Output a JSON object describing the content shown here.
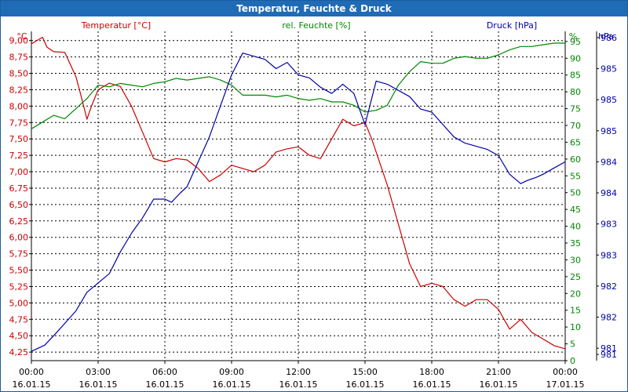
{
  "chart_data": {
    "type": "line",
    "title": "Temperatur, Feuchte & Druck",
    "colors": {
      "temperature": "#cc0000",
      "humidity": "#008800",
      "pressure": "#0000aa",
      "axis": "#000000",
      "grid": "#000000",
      "title_bg": "#1f6bb5"
    },
    "series_labels": {
      "temperature": "Temperatur [°C]",
      "humidity": "rel. Feuchte [%]",
      "pressure": "Druck [hPa]"
    },
    "left_axis": {
      "unit": "°C",
      "ylim": [
        4.12,
        9.14
      ],
      "ticks": [
        "9,00",
        "8,75",
        "8,50",
        "8,25",
        "8,00",
        "7,75",
        "7,50",
        "7,25",
        "7,00",
        "6,75",
        "6,50",
        "6,25",
        "6,00",
        "5,75",
        "5,50",
        "5,25",
        "5,00",
        "4,75",
        "4,50",
        "4,25"
      ],
      "tick_values": [
        9.0,
        8.75,
        8.5,
        8.25,
        8.0,
        7.75,
        7.5,
        7.25,
        7.0,
        6.75,
        6.5,
        6.25,
        6.0,
        5.75,
        5.5,
        5.25,
        5.0,
        4.75,
        4.5,
        4.25
      ]
    },
    "middle_axis": {
      "unit": "%",
      "ylim": [
        0,
        98
      ],
      "ticks": [
        "95",
        "90",
        "85",
        "80",
        "75",
        "70",
        "65",
        "60",
        "55",
        "50",
        "45",
        "40",
        "35",
        "30",
        "25",
        "20",
        "15",
        "10",
        "5",
        "0"
      ],
      "tick_values": [
        95,
        90,
        85,
        80,
        75,
        70,
        65,
        60,
        55,
        50,
        45,
        40,
        35,
        30,
        25,
        20,
        15,
        10,
        5,
        0
      ]
    },
    "right_axis": {
      "unit": "hPa",
      "ylim": [
        980.8,
        986.1
      ],
      "ticks": [
        "986",
        "985",
        "985",
        "985",
        "984",
        "984",
        "983",
        "983",
        "982",
        "982",
        "981",
        "981"
      ],
      "tick_values": [
        986.0,
        985.5,
        985.0,
        984.5,
        984.0,
        983.5,
        983.0,
        982.5,
        982.0,
        981.5,
        981.0,
        980.9
      ]
    },
    "x_axis": {
      "xlim": [
        0,
        24
      ],
      "tick_positions": [
        0,
        3,
        6,
        9,
        12,
        15,
        18,
        21,
        24
      ],
      "time_labels": [
        "00:00",
        "03:00",
        "06:00",
        "09:00",
        "12:00",
        "15:00",
        "18:00",
        "21:00",
        "00:00"
      ],
      "date_labels": [
        "16.01.15",
        "16.01.15",
        "16.01.15",
        "16.01.15",
        "16.01.15",
        "16.01.15",
        "16.01.15",
        "16.01.15",
        "17.01.15"
      ]
    },
    "series": [
      {
        "key": "temperature",
        "name": "Temperatur [°C]",
        "x": [
          0,
          0.5,
          0.7,
          1.0,
          1.5,
          1.8,
          2.0,
          2.2,
          2.5,
          2.7,
          3.0,
          3.5,
          4.0,
          4.5,
          5.0,
          5.5,
          6.0,
          6.5,
          7.0,
          7.5,
          8.0,
          8.5,
          9.0,
          9.5,
          10.0,
          10.5,
          11.0,
          11.5,
          12.0,
          12.5,
          13.0,
          13.5,
          14.0,
          14.5,
          15.0,
          15.3,
          15.6,
          16.0,
          16.5,
          17.0,
          17.5,
          18.0,
          18.5,
          19.0,
          19.5,
          20.0,
          20.5,
          21.0,
          21.5,
          22.0,
          22.5,
          23.0,
          23.5,
          24.0
        ],
        "values": [
          8.95,
          9.05,
          8.9,
          8.83,
          8.82,
          8.6,
          8.45,
          8.2,
          7.8,
          8.0,
          8.25,
          8.35,
          8.3,
          8.0,
          7.6,
          7.2,
          7.15,
          7.2,
          7.18,
          7.05,
          6.85,
          6.95,
          7.1,
          7.05,
          7.0,
          7.1,
          7.3,
          7.35,
          7.38,
          7.25,
          7.2,
          7.5,
          7.8,
          7.7,
          7.75,
          7.5,
          7.2,
          6.8,
          6.2,
          5.6,
          5.25,
          5.3,
          5.25,
          5.05,
          4.95,
          5.05,
          5.05,
          4.9,
          4.6,
          4.75,
          4.55,
          4.45,
          4.35,
          4.3
        ]
      },
      {
        "key": "humidity",
        "name": "rel. Feuchte [%]",
        "x": [
          0,
          0.5,
          1.0,
          1.5,
          2.0,
          2.5,
          3.0,
          3.5,
          4.0,
          4.5,
          5.0,
          5.5,
          6.0,
          6.5,
          7.0,
          7.5,
          8.0,
          8.5,
          9.0,
          9.5,
          10.0,
          10.5,
          11.0,
          11.5,
          12.0,
          12.5,
          13.0,
          13.5,
          14.0,
          14.5,
          15.0,
          15.5,
          16.0,
          16.5,
          17.0,
          17.5,
          18.0,
          18.5,
          19.0,
          19.5,
          20.0,
          20.5,
          21.0,
          21.5,
          22.0,
          22.5,
          23.0,
          23.5,
          24.0
        ],
        "values": [
          69,
          71,
          73,
          72,
          75,
          78,
          82,
          81.5,
          82.5,
          82,
          81.5,
          82.5,
          83,
          84,
          83.5,
          84,
          84.5,
          83.5,
          82,
          79,
          79,
          79,
          78.5,
          79,
          78,
          77.5,
          78,
          77,
          77,
          76,
          74,
          74.5,
          76,
          82,
          86,
          89,
          88.5,
          88.5,
          90,
          90.5,
          90,
          90,
          91,
          92.5,
          93.5,
          93.5,
          94,
          94.5,
          94.5
        ]
      },
      {
        "key": "pressure",
        "name": "Druck [hPa]",
        "x": [
          0,
          0.3,
          0.6,
          1.0,
          1.5,
          2.0,
          2.5,
          3.0,
          3.5,
          4.0,
          4.5,
          5.0,
          5.5,
          6.0,
          6.3,
          6.7,
          7.0,
          7.5,
          8.0,
          8.5,
          9.0,
          9.5,
          10.0,
          10.5,
          11.0,
          11.5,
          12.0,
          12.5,
          13.0,
          13.5,
          14.0,
          14.5,
          15.0,
          15.5,
          16.0,
          16.5,
          17.0,
          17.5,
          18.0,
          18.5,
          19.0,
          19.5,
          20.0,
          20.5,
          21.0,
          21.5,
          22.0,
          22.3,
          22.7,
          23.0,
          23.5,
          24.0
        ],
        "values": [
          980.95,
          981.0,
          981.05,
          981.2,
          981.4,
          981.6,
          981.9,
          982.05,
          982.2,
          982.55,
          982.85,
          983.1,
          983.4,
          983.4,
          983.35,
          983.5,
          983.6,
          984.0,
          984.4,
          984.9,
          985.4,
          985.75,
          985.7,
          985.65,
          985.5,
          985.6,
          985.4,
          985.35,
          985.2,
          985.1,
          985.25,
          985.1,
          984.6,
          985.3,
          985.25,
          985.15,
          985.05,
          984.85,
          984.8,
          984.6,
          984.4,
          984.3,
          984.25,
          984.2,
          984.1,
          983.8,
          983.65,
          983.7,
          983.75,
          983.8,
          983.9,
          984.0
        ]
      }
    ]
  }
}
